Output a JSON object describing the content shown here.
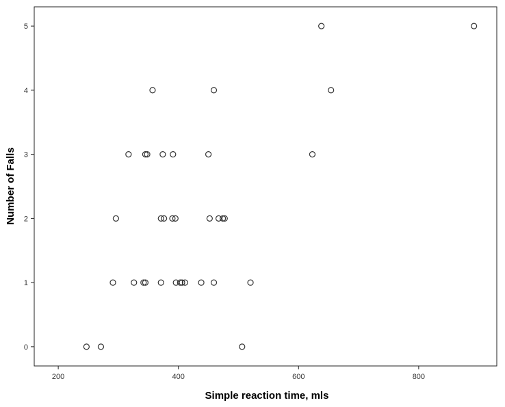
{
  "chart_data": {
    "type": "scatter",
    "title": "",
    "xlabel": "Simple reaction time, mls",
    "ylabel": "Number of Falls",
    "xlim": [
      160,
      930
    ],
    "ylim": [
      -0.3,
      5.3
    ],
    "xticks": [
      200,
      400,
      600,
      800
    ],
    "yticks": [
      0,
      1,
      2,
      3,
      4,
      5
    ],
    "grid": false,
    "marker": "open-circle",
    "colors": {
      "marker_stroke": "#333333",
      "axis": "#222222",
      "background": "#ffffff"
    },
    "points": [
      {
        "x": 247,
        "y": 0
      },
      {
        "x": 271,
        "y": 0
      },
      {
        "x": 506,
        "y": 0
      },
      {
        "x": 291,
        "y": 1
      },
      {
        "x": 326,
        "y": 1
      },
      {
        "x": 342,
        "y": 1
      },
      {
        "x": 345,
        "y": 1
      },
      {
        "x": 371,
        "y": 1
      },
      {
        "x": 396,
        "y": 1
      },
      {
        "x": 403,
        "y": 1
      },
      {
        "x": 406,
        "y": 1
      },
      {
        "x": 411,
        "y": 1
      },
      {
        "x": 438,
        "y": 1
      },
      {
        "x": 459,
        "y": 1
      },
      {
        "x": 520,
        "y": 1
      },
      {
        "x": 296,
        "y": 2
      },
      {
        "x": 371,
        "y": 2
      },
      {
        "x": 376,
        "y": 2
      },
      {
        "x": 390,
        "y": 2
      },
      {
        "x": 395,
        "y": 2
      },
      {
        "x": 452,
        "y": 2
      },
      {
        "x": 467,
        "y": 2
      },
      {
        "x": 474,
        "y": 2
      },
      {
        "x": 477,
        "y": 2
      },
      {
        "x": 317,
        "y": 3
      },
      {
        "x": 345,
        "y": 3
      },
      {
        "x": 348,
        "y": 3
      },
      {
        "x": 374,
        "y": 3
      },
      {
        "x": 391,
        "y": 3
      },
      {
        "x": 450,
        "y": 3
      },
      {
        "x": 623,
        "y": 3
      },
      {
        "x": 357,
        "y": 4
      },
      {
        "x": 459,
        "y": 4
      },
      {
        "x": 654,
        "y": 4
      },
      {
        "x": 638,
        "y": 5
      },
      {
        "x": 892,
        "y": 5
      }
    ]
  }
}
